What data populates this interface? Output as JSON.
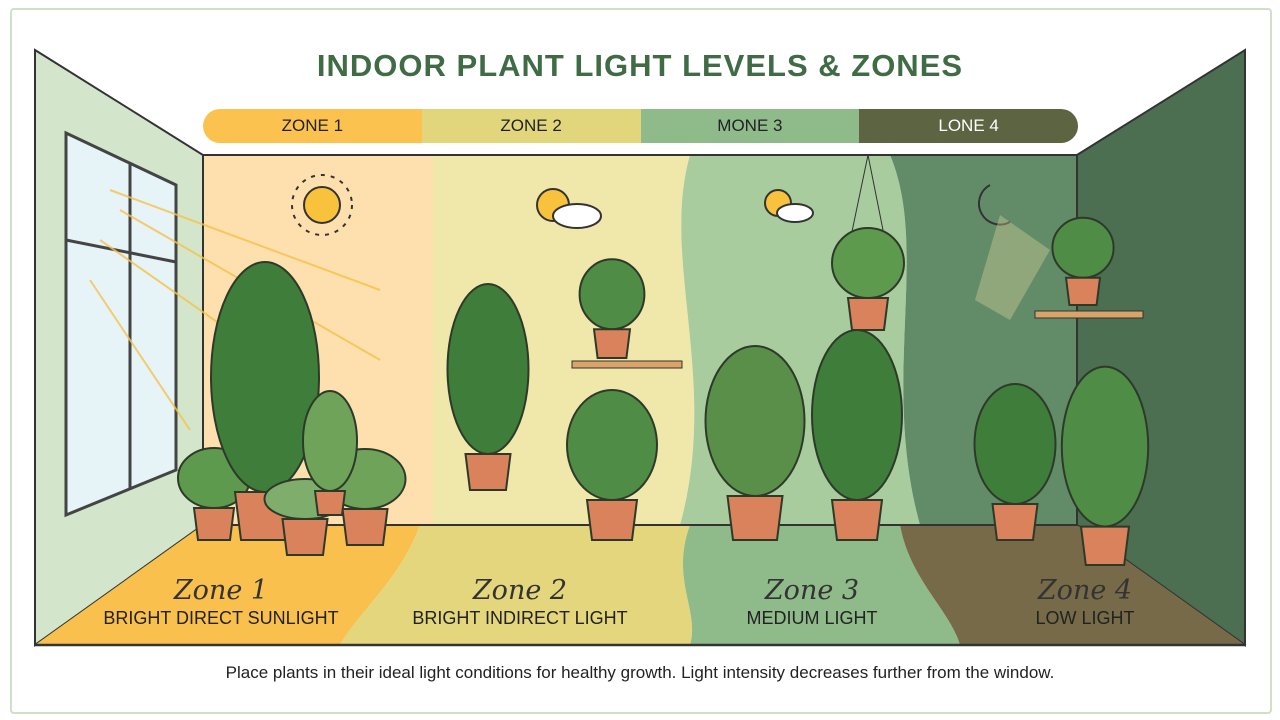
{
  "title": "INDOOR PLANT LIGHT LEVELS & ZONES",
  "zone_bar": [
    {
      "label": "ZONE 1",
      "color": "#fbc24f"
    },
    {
      "label": "ZONE 2",
      "color": "#e1d67c"
    },
    {
      "label": "MONE 3",
      "color": "#8fbb8b"
    },
    {
      "label": "LONE 4",
      "color": "#5c6442"
    }
  ],
  "zones": [
    {
      "name": "Zone 1",
      "light": "BRIGHT DIRECT SUNLIGHT"
    },
    {
      "name": "Zone 2",
      "light": "BRIGHT INDIRECT LIGHT"
    },
    {
      "name": "Zone 3",
      "light": "MEDIUM LIGHT"
    },
    {
      "name": "Zone 4",
      "light": "LOW LIGHT"
    }
  ],
  "icons": [
    "sun-icon",
    "sun-cloud-icon",
    "sun-cloud-icon",
    "moon-icon",
    "window-icon",
    "plant-icon"
  ],
  "caption": "Place plants in their ideal light conditions for healthy growth. Light intensity decreases further from the window."
}
